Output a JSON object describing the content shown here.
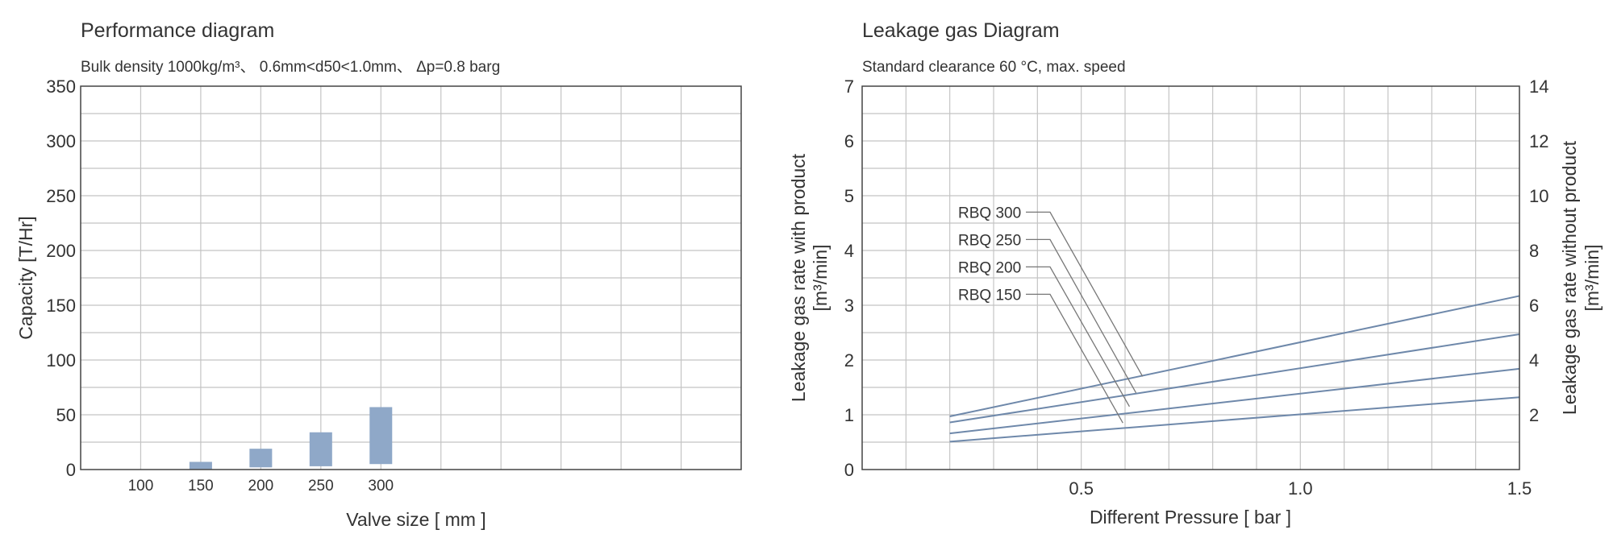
{
  "chart_data": [
    {
      "type": "bar",
      "title": "Performance diagram",
      "subtitle": "Bulk density 1000kg/m³、 0.6mm<d50<1.0mm、 Δp=0.8 barg",
      "xlabel": "Valve size [ mm ]",
      "ylabel": "Capacity [T/Hr]",
      "ylim": [
        0,
        350
      ],
      "yticks": [
        0,
        50,
        100,
        150,
        200,
        250,
        300,
        350
      ],
      "categories": [
        "100",
        "150",
        "200",
        "250",
        "300"
      ],
      "bars": [
        {
          "category": "100",
          "low": 0,
          "high": 0
        },
        {
          "category": "150",
          "low": 0,
          "high": 7
        },
        {
          "category": "200",
          "low": 2,
          "high": 19
        },
        {
          "category": "250",
          "low": 3,
          "high": 34
        },
        {
          "category": "300",
          "low": 5,
          "high": 57
        }
      ],
      "x_slots": 11,
      "grid": true,
      "bar_color": "#8fa8c8"
    },
    {
      "type": "line",
      "title": "Leakage gas Diagram",
      "subtitle": "Standard clearance  60 °C, max. speed",
      "xlabel": "Different Pressure [ bar ]",
      "ylabel_left": "Leakage gas rate with product",
      "ylabel_left_unit": "[m³/min]",
      "ylabel_right": "Leakage gas rate without product",
      "ylabel_right_unit": "[m³/min]",
      "xlim": [
        0,
        1.5
      ],
      "xticks": [
        "0.5",
        "1.0",
        "1.5"
      ],
      "xtick_values": [
        0.5,
        1.0,
        1.5
      ],
      "ylim_left": [
        0,
        7
      ],
      "yticks_left": [
        "0",
        "1",
        "2",
        "3",
        "4",
        "5",
        "6",
        "7"
      ],
      "ylim_right": [
        0,
        14
      ],
      "yticks_right": [
        "2",
        "4",
        "6",
        "8",
        "10",
        "12",
        "14"
      ],
      "series": [
        {
          "name": "RBQ 300",
          "x": [
            0.2,
            1.5
          ],
          "y": [
            0.97,
            3.17
          ],
          "label_y": 4.7,
          "pointer": [
            0.64,
            1.7
          ]
        },
        {
          "name": "RBQ 250",
          "x": [
            0.2,
            1.5
          ],
          "y": [
            0.86,
            2.47
          ],
          "label_y": 4.2,
          "pointer": [
            0.625,
            1.4
          ]
        },
        {
          "name": "RBQ 200",
          "x": [
            0.2,
            1.5
          ],
          "y": [
            0.66,
            1.84
          ],
          "label_y": 3.7,
          "pointer": [
            0.61,
            1.15
          ]
        },
        {
          "name": "RBQ 150",
          "x": [
            0.2,
            1.5
          ],
          "y": [
            0.51,
            1.32
          ],
          "label_y": 3.2,
          "pointer": [
            0.595,
            0.85
          ]
        }
      ],
      "line_color": "#6e88aa",
      "grid": true
    }
  ]
}
